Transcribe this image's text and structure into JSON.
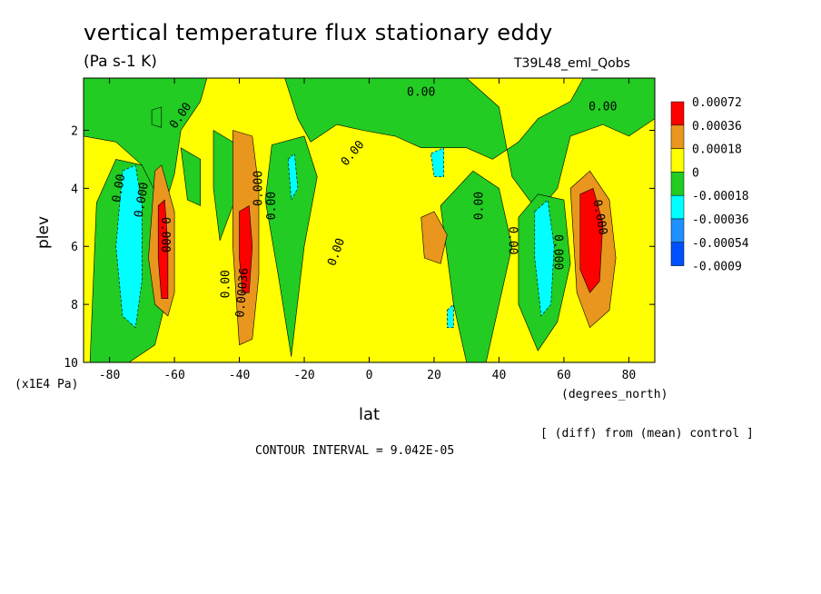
{
  "header": {
    "title": "vertical temperature flux stationary eddy",
    "units": "(Pa s-1 K)",
    "experiment": "T39L48_eml_Qobs"
  },
  "footer": {
    "contour_interval": "CONTOUR INTERVAL = 9.042E-05",
    "diff_note": "[ (diff) from (mean) control ]"
  },
  "chart_data": {
    "type": "heatmap",
    "title": "vertical temperature flux stationary eddy",
    "subtitle": "(Pa s-1 K)",
    "xlabel": "lat",
    "xunits": "(degrees_north)",
    "ylabel": "plev",
    "yunits": "(x1E4 Pa)",
    "xlim": [
      -88,
      88
    ],
    "ylim": [
      10,
      0.2
    ],
    "x_ticks": [
      -80,
      -60,
      -40,
      -20,
      0,
      20,
      40,
      60,
      80
    ],
    "x_tick_labels": [
      "-80",
      "-60",
      "-40",
      "-20",
      "0",
      "20",
      "40",
      "60",
      "80"
    ],
    "y_ticks": [
      2,
      4,
      6,
      8,
      10
    ],
    "y_tick_labels": [
      "2",
      "4",
      "6",
      "8",
      "10"
    ],
    "contour_interval": 9.042e-05,
    "legend": {
      "placement": "right",
      "labels": [
        "0.00072",
        "0.00036",
        "0.00018",
        "0",
        "-0.00018",
        "-0.00036",
        "-0.00054",
        "-0.0009"
      ],
      "colors": [
        "#ff0000",
        "#e8961e",
        "#ffff00",
        "#22cc22",
        "#00ffff",
        "#1e90ff",
        "#0050ff"
      ]
    },
    "background_color": "#ffff00",
    "regions": [
      {
        "level": "0",
        "color": "#22cc22",
        "shape": "poly",
        "points": [
          [
            -88,
            0.2
          ],
          [
            -50,
            0.2
          ],
          [
            -52,
            1.0
          ],
          [
            -58,
            2.0
          ],
          [
            -60,
            3.5
          ],
          [
            -64,
            5.0
          ],
          [
            -70,
            3.2
          ],
          [
            -78,
            2.4
          ],
          [
            -88,
            2.2
          ]
        ]
      },
      {
        "level": "0",
        "color": "#22cc22",
        "shape": "poly",
        "points": [
          [
            -26,
            0.2
          ],
          [
            30,
            0.2
          ],
          [
            40,
            1.2
          ],
          [
            44,
            3.6
          ],
          [
            52,
            4.8
          ],
          [
            58,
            4.0
          ],
          [
            62,
            2.2
          ],
          [
            72,
            1.8
          ],
          [
            80,
            2.2
          ],
          [
            88,
            1.6
          ],
          [
            88,
            0.2
          ],
          [
            66,
            0.2
          ],
          [
            62,
            1.0
          ],
          [
            52,
            1.6
          ],
          [
            46,
            2.4
          ],
          [
            38,
            3.0
          ],
          [
            30,
            2.6
          ],
          [
            16,
            2.6
          ],
          [
            8,
            2.2
          ],
          [
            -2,
            2.0
          ],
          [
            -10,
            1.8
          ],
          [
            -18,
            2.4
          ],
          [
            -22,
            1.6
          ]
        ]
      },
      {
        "level": "0",
        "color": "#22cc22",
        "shape": "poly",
        "points": [
          [
            -84,
            4.5
          ],
          [
            -78,
            3.0
          ],
          [
            -70,
            3.2
          ],
          [
            -62,
            5.0
          ],
          [
            -62,
            7.6
          ],
          [
            -66,
            9.4
          ],
          [
            -74,
            10
          ],
          [
            -86,
            10
          ]
        ]
      },
      {
        "level": "0",
        "color": "#22cc22",
        "shape": "poly",
        "points": [
          [
            -48,
            2.0
          ],
          [
            -42,
            2.4
          ],
          [
            -40,
            4.0
          ],
          [
            -46,
            5.8
          ],
          [
            -48,
            4.0
          ]
        ]
      },
      {
        "level": "0",
        "color": "#22cc22",
        "shape": "poly",
        "points": [
          [
            -30,
            2.5
          ],
          [
            -20,
            2.2
          ],
          [
            -16,
            3.6
          ],
          [
            -20,
            6.0
          ],
          [
            -24,
            9.8
          ],
          [
            -28,
            7.0
          ],
          [
            -32,
            4.4
          ]
        ]
      },
      {
        "level": "0",
        "color": "#22cc22",
        "shape": "poly",
        "points": [
          [
            22,
            4.6
          ],
          [
            32,
            3.4
          ],
          [
            40,
            4.0
          ],
          [
            44,
            6.0
          ],
          [
            40,
            8.0
          ],
          [
            36,
            10
          ],
          [
            30,
            10
          ],
          [
            26,
            8.0
          ]
        ]
      },
      {
        "level": "0",
        "color": "#22cc22",
        "shape": "poly",
        "points": [
          [
            46,
            5.0
          ],
          [
            52,
            4.2
          ],
          [
            60,
            4.4
          ],
          [
            62,
            6.6
          ],
          [
            58,
            8.6
          ],
          [
            52,
            9.6
          ],
          [
            46,
            8.0
          ]
        ]
      },
      {
        "level": "0",
        "color": "#22cc22",
        "shape": "poly",
        "points": [
          [
            -58,
            2.6
          ],
          [
            -52,
            3.0
          ],
          [
            -52,
            4.6
          ],
          [
            -56,
            4.4
          ]
        ]
      },
      {
        "level": "0",
        "color": "#22cc22",
        "shape": "poly",
        "points": [
          [
            -67,
            1.3
          ],
          [
            -64,
            1.2
          ],
          [
            -64,
            1.9
          ],
          [
            -67,
            1.8
          ]
        ]
      },
      {
        "level": "-0.00018",
        "color": "#00ffff",
        "shape": "poly",
        "points": [
          [
            -76,
            3.4
          ],
          [
            -72,
            3.2
          ],
          [
            -70,
            4.6
          ],
          [
            -70,
            7.2
          ],
          [
            -72,
            8.8
          ],
          [
            -76,
            8.4
          ],
          [
            -78,
            6.0
          ]
        ]
      },
      {
        "level": "-0.00018",
        "color": "#00ffff",
        "shape": "poly",
        "points": [
          [
            -25,
            3.0
          ],
          [
            -23,
            2.8
          ],
          [
            -22,
            4.0
          ],
          [
            -24,
            4.4
          ]
        ]
      },
      {
        "level": "-0.00018",
        "color": "#00ffff",
        "shape": "poly",
        "points": [
          [
            19,
            2.8
          ],
          [
            23,
            2.6
          ],
          [
            23,
            3.6
          ],
          [
            20,
            3.6
          ]
        ]
      },
      {
        "level": "-0.00018",
        "color": "#00ffff",
        "shape": "poly",
        "points": [
          [
            51,
            4.8
          ],
          [
            55,
            4.4
          ],
          [
            57,
            6.0
          ],
          [
            56,
            8.0
          ],
          [
            53,
            8.4
          ],
          [
            51,
            6.4
          ]
        ]
      },
      {
        "level": "-0.00018",
        "color": "#00ffff",
        "shape": "poly",
        "points": [
          [
            24,
            8.2
          ],
          [
            26,
            8.0
          ],
          [
            26,
            8.8
          ],
          [
            24,
            8.8
          ]
        ]
      },
      {
        "level": "0.00018",
        "color": "#e8961e",
        "shape": "poly",
        "points": [
          [
            -66,
            3.4
          ],
          [
            -64,
            3.2
          ],
          [
            -60,
            4.8
          ],
          [
            -60,
            7.6
          ],
          [
            -62,
            8.4
          ],
          [
            -66,
            8.0
          ],
          [
            -68,
            6.4
          ]
        ]
      },
      {
        "level": "0.00018",
        "color": "#e8961e",
        "shape": "poly",
        "points": [
          [
            -42,
            2.0
          ],
          [
            -36,
            2.2
          ],
          [
            -34,
            4.0
          ],
          [
            -34,
            7.0
          ],
          [
            -36,
            9.2
          ],
          [
            -40,
            9.4
          ],
          [
            -42,
            6.0
          ]
        ]
      },
      {
        "level": "0.00018",
        "color": "#e8961e",
        "shape": "poly",
        "points": [
          [
            16,
            5.0
          ],
          [
            20,
            4.8
          ],
          [
            24,
            5.6
          ],
          [
            22,
            6.6
          ],
          [
            17,
            6.4
          ]
        ]
      },
      {
        "level": "0.00018",
        "color": "#e8961e",
        "shape": "poly",
        "points": [
          [
            62,
            4.0
          ],
          [
            68,
            3.4
          ],
          [
            74,
            4.4
          ],
          [
            76,
            6.4
          ],
          [
            74,
            8.2
          ],
          [
            68,
            8.8
          ],
          [
            64,
            7.6
          ]
        ]
      },
      {
        "level": "0.00036",
        "color": "#ff0000",
        "shape": "poly",
        "points": [
          [
            -65,
            4.6
          ],
          [
            -63,
            4.4
          ],
          [
            -62,
            6.0
          ],
          [
            -62,
            7.8
          ],
          [
            -64,
            7.8
          ],
          [
            -65,
            6.4
          ]
        ]
      },
      {
        "level": "0.00036",
        "color": "#ff0000",
        "shape": "poly",
        "points": [
          [
            -40,
            4.8
          ],
          [
            -37,
            4.6
          ],
          [
            -36,
            6.0
          ],
          [
            -37,
            7.6
          ],
          [
            -39,
            7.6
          ],
          [
            -40,
            6.4
          ]
        ]
      },
      {
        "level": "0.00036",
        "color": "#ff0000",
        "shape": "poly",
        "points": [
          [
            65,
            4.2
          ],
          [
            69,
            4.0
          ],
          [
            72,
            5.2
          ],
          [
            71,
            7.2
          ],
          [
            68,
            7.6
          ],
          [
            65,
            6.8
          ]
        ]
      }
    ],
    "contour_labels": [
      {
        "text": "0.00",
        "lat": -58,
        "plev": 1.5,
        "angle": -55
      },
      {
        "text": "0.00",
        "lat": 16,
        "plev": 0.7,
        "angle": 0
      },
      {
        "text": "0.00",
        "lat": 72,
        "plev": 1.2,
        "angle": 0
      },
      {
        "text": "0.00",
        "lat": -5,
        "plev": 2.8,
        "angle": -50
      },
      {
        "text": "0.00",
        "lat": 34,
        "plev": 4.6,
        "angle": -90
      },
      {
        "text": "0.00",
        "lat": -10,
        "plev": 6.2,
        "angle": -70
      },
      {
        "text": "0.00",
        "lat": -44,
        "plev": 7.3,
        "angle": -90
      },
      {
        "text": "0.00",
        "lat": -77,
        "plev": 4.0,
        "angle": -80
      },
      {
        "text": "0.00",
        "lat": 44,
        "plev": 5.8,
        "angle": 90
      },
      {
        "text": "0.000",
        "lat": -70,
        "plev": 4.4,
        "angle": -80
      },
      {
        "text": "0.000",
        "lat": -63,
        "plev": 5.6,
        "angle": 90
      },
      {
        "text": "0.000",
        "lat": -34,
        "plev": 4.0,
        "angle": -90
      },
      {
        "text": "0.000",
        "lat": 58,
        "plev": 6.2,
        "angle": 90
      },
      {
        "text": "0.00",
        "lat": -30,
        "plev": 4.6,
        "angle": -90
      },
      {
        "text": "0.00036",
        "lat": -39,
        "plev": 7.6,
        "angle": -85
      },
      {
        "text": "0.000",
        "lat": 71,
        "plev": 5.0,
        "angle": 80
      }
    ]
  }
}
